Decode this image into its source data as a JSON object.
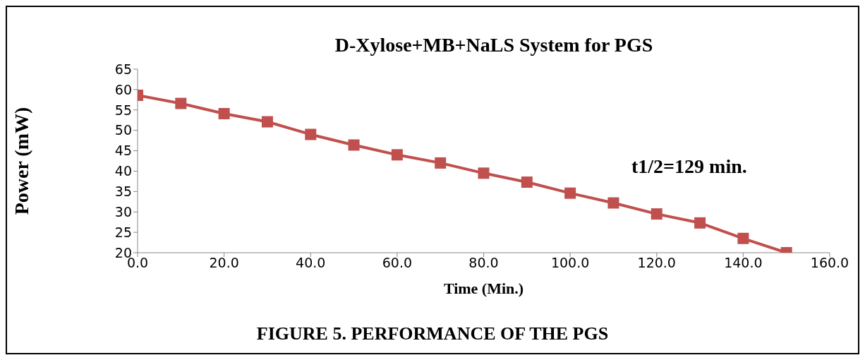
{
  "chart_data": {
    "type": "line",
    "title": "D-Xylose+MB+NaLS System for PGS",
    "xlabel": "Time (Min.)",
    "ylabel": "Power (mW)",
    "x": [
      0,
      10,
      20,
      30,
      40,
      50,
      60,
      70,
      80,
      90,
      100,
      110,
      120,
      130,
      140,
      150
    ],
    "series": [
      {
        "color": "#c0504d",
        "values": [
          58.6,
          56.6,
          54.1,
          52.1,
          49.0,
          46.4,
          44.0,
          42.0,
          39.5,
          37.3,
          34.6,
          32.2,
          29.5,
          27.3,
          23.5,
          20.0
        ]
      }
    ],
    "xlim": [
      0,
      160
    ],
    "xticks": [
      {
        "value": 0,
        "label": "0.0"
      },
      {
        "value": 20,
        "label": "20.0"
      },
      {
        "value": 40,
        "label": "40.0"
      },
      {
        "value": 60,
        "label": "60.0"
      },
      {
        "value": 80,
        "label": "80.0"
      },
      {
        "value": 100,
        "label": "100.0"
      },
      {
        "value": 120,
        "label": "120.0"
      },
      {
        "value": 140,
        "label": "140.0"
      },
      {
        "value": 160,
        "label": "160.0"
      }
    ],
    "ylim": [
      20,
      65
    ],
    "yticks": [
      20,
      25,
      30,
      35,
      40,
      45,
      50,
      55,
      60,
      65
    ],
    "marker": "square",
    "line_style": "solid",
    "annotations": [
      "t1/2=129 min.",
      "FIGURE 5.  PERFORMANCE OF THE PGS"
    ]
  }
}
